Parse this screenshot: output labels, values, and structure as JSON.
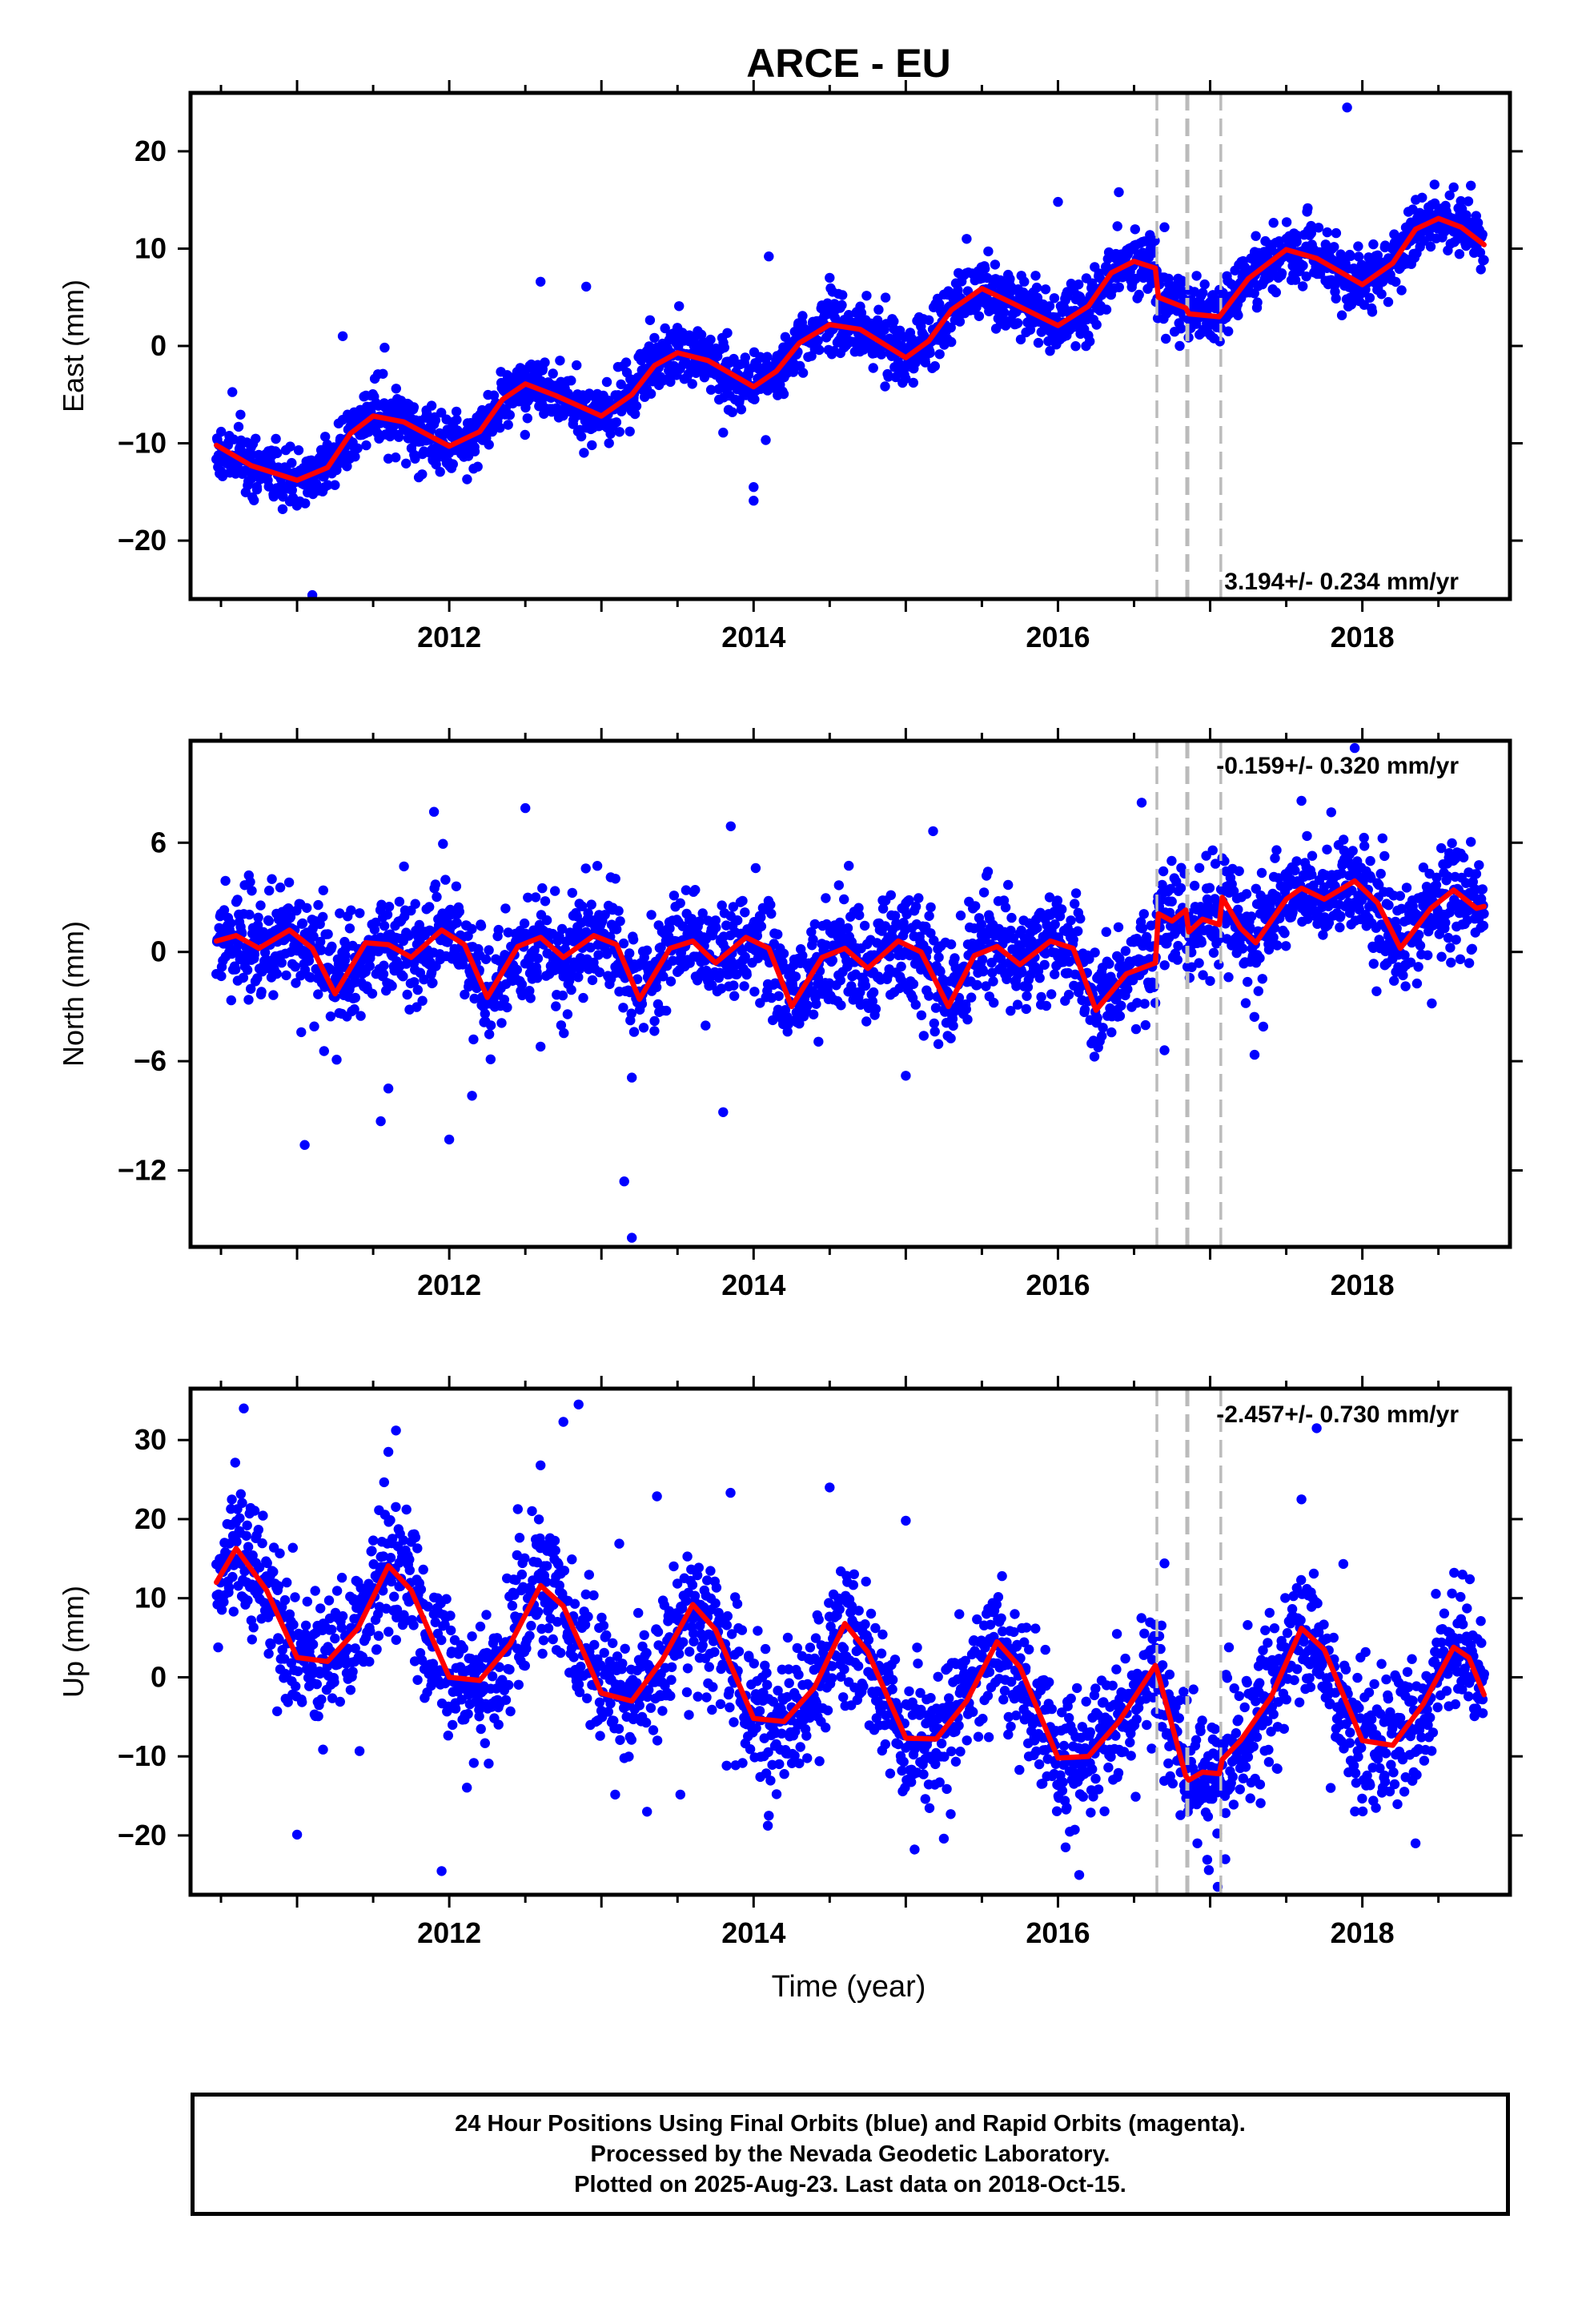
{
  "title": "ARCE - EU",
  "x_axis_label": "Time (year)",
  "footer": {
    "line1": "24 Hour Positions Using Final Orbits (blue) and Rapid Orbits (magenta).",
    "line2": "Processed by the Nevada Geodetic Laboratory.",
    "line3": "Plotted on 2025-Aug-23. Last data on 2018-Oct-15."
  },
  "colors": {
    "final_orbit_points": "#0000ff",
    "rapid_orbit_points": "#ff00ff",
    "model_fit": "#ff0000",
    "offset_lines": "#bbbbbb"
  },
  "chart_data": [
    {
      "type": "scatter",
      "panel": "east",
      "ylabel": "East (mm)",
      "rate_text": "3.194+/- 0.234 mm/yr",
      "xlim": [
        2010.3,
        2018.97
      ],
      "ylim": [
        -26,
        26
      ],
      "xticks": [
        2012,
        2014,
        2016,
        2018
      ],
      "yticks": [
        20,
        10,
        0,
        -10,
        -20
      ],
      "offset_lines_x": [
        2016.65,
        2016.85,
        2017.07
      ],
      "model": {
        "knots": [
          [
            2010.47,
            -10.2
          ],
          [
            2010.7,
            -12.3
          ],
          [
            2011.0,
            -13.8
          ],
          [
            2011.2,
            -12.5
          ],
          [
            2011.35,
            -9.0
          ],
          [
            2011.5,
            -7.2
          ],
          [
            2011.7,
            -7.8
          ],
          [
            2012.0,
            -10.3
          ],
          [
            2012.2,
            -8.8
          ],
          [
            2012.35,
            -5.5
          ],
          [
            2012.5,
            -3.9
          ],
          [
            2012.7,
            -5.1
          ],
          [
            2013.0,
            -7.2
          ],
          [
            2013.2,
            -5.0
          ],
          [
            2013.35,
            -2.0
          ],
          [
            2013.5,
            -0.7
          ],
          [
            2013.7,
            -1.5
          ],
          [
            2014.0,
            -4.2
          ],
          [
            2014.15,
            -2.6
          ],
          [
            2014.3,
            0.3
          ],
          [
            2014.5,
            2.2
          ],
          [
            2014.7,
            1.7
          ],
          [
            2015.0,
            -1.2
          ],
          [
            2015.15,
            0.5
          ],
          [
            2015.3,
            3.7
          ],
          [
            2015.5,
            5.9
          ],
          [
            2015.7,
            4.4
          ],
          [
            2016.0,
            2.1
          ],
          [
            2016.2,
            4.1
          ],
          [
            2016.35,
            7.5
          ],
          [
            2016.5,
            8.7
          ],
          [
            2016.64,
            8.0
          ],
          [
            2016.66,
            5.0
          ],
          [
            2016.84,
            3.9
          ],
          [
            2016.86,
            3.3
          ],
          [
            2017.06,
            3.0
          ],
          [
            2017.08,
            3.4
          ],
          [
            2017.25,
            6.9
          ],
          [
            2017.5,
            9.9
          ],
          [
            2017.7,
            9.0
          ],
          [
            2018.0,
            6.3
          ],
          [
            2018.2,
            8.5
          ],
          [
            2018.35,
            12.0
          ],
          [
            2018.5,
            13.1
          ],
          [
            2018.65,
            12.2
          ],
          [
            2018.8,
            10.4
          ]
        ]
      },
      "outliers": [
        [
          2017.9,
          24.5
        ],
        [
          2011.1,
          -25.6
        ],
        [
          2014.0,
          -14.5
        ],
        [
          2014.0,
          -15.9
        ],
        [
          2011.3,
          1.0
        ],
        [
          2012.6,
          6.6
        ],
        [
          2012.9,
          6.1
        ],
        [
          2014.1,
          9.2
        ],
        [
          2014.5,
          7.0
        ],
        [
          2015.4,
          11.0
        ],
        [
          2016.0,
          14.8
        ],
        [
          2016.4,
          15.8
        ],
        [
          2017.3,
          11.3
        ],
        [
          2016.7,
          12.2
        ],
        [
          2011.8,
          -13.5
        ],
        [
          2013.8,
          -8.9
        ],
        [
          2016.8,
          0.0
        ],
        [
          2018.6,
          16.3
        ]
      ],
      "noise_sd": 1.5,
      "n_points": 2300,
      "seed": 11
    },
    {
      "type": "scatter",
      "panel": "north",
      "ylabel": "North (mm)",
      "rate_text": "-0.159+/- 0.320 mm/yr",
      "xlim": [
        2010.3,
        2018.97
      ],
      "ylim": [
        -16.2,
        11.6
      ],
      "xticks": [
        2012,
        2014,
        2016,
        2018
      ],
      "yticks": [
        6,
        0,
        -6,
        -12
      ],
      "offset_lines_x": [
        2016.65,
        2016.85,
        2017.07
      ],
      "model": {
        "knots": [
          [
            2010.47,
            0.6
          ],
          [
            2010.6,
            0.9
          ],
          [
            2010.75,
            0.2
          ],
          [
            2010.95,
            1.2
          ],
          [
            2011.1,
            0.2
          ],
          [
            2011.25,
            -2.3
          ],
          [
            2011.45,
            0.5
          ],
          [
            2011.6,
            0.4
          ],
          [
            2011.75,
            -0.3
          ],
          [
            2011.95,
            1.2
          ],
          [
            2012.1,
            0.4
          ],
          [
            2012.25,
            -2.5
          ],
          [
            2012.45,
            0.3
          ],
          [
            2012.6,
            0.8
          ],
          [
            2012.75,
            -0.3
          ],
          [
            2012.95,
            0.9
          ],
          [
            2013.1,
            0.4
          ],
          [
            2013.25,
            -2.6
          ],
          [
            2013.45,
            0.2
          ],
          [
            2013.6,
            0.6
          ],
          [
            2013.75,
            -0.6
          ],
          [
            2013.95,
            0.8
          ],
          [
            2014.1,
            0.2
          ],
          [
            2014.25,
            -3.0
          ],
          [
            2014.45,
            -0.3
          ],
          [
            2014.6,
            0.2
          ],
          [
            2014.75,
            -0.9
          ],
          [
            2014.95,
            0.6
          ],
          [
            2015.1,
            0.0
          ],
          [
            2015.28,
            -3.0
          ],
          [
            2015.45,
            -0.2
          ],
          [
            2015.6,
            0.3
          ],
          [
            2015.75,
            -0.7
          ],
          [
            2015.95,
            0.6
          ],
          [
            2016.1,
            0.2
          ],
          [
            2016.25,
            -3.2
          ],
          [
            2016.45,
            -1.2
          ],
          [
            2016.64,
            -0.6
          ],
          [
            2016.66,
            2.1
          ],
          [
            2016.75,
            1.7
          ],
          [
            2016.84,
            2.3
          ],
          [
            2016.86,
            1.1
          ],
          [
            2016.95,
            1.8
          ],
          [
            2017.06,
            1.5
          ],
          [
            2017.08,
            3.0
          ],
          [
            2017.2,
            1.3
          ],
          [
            2017.3,
            0.5
          ],
          [
            2017.5,
            2.9
          ],
          [
            2017.6,
            3.5
          ],
          [
            2017.75,
            2.9
          ],
          [
            2017.95,
            3.9
          ],
          [
            2018.1,
            2.7
          ],
          [
            2018.25,
            0.2
          ],
          [
            2018.45,
            2.4
          ],
          [
            2018.6,
            3.4
          ],
          [
            2018.75,
            2.4
          ],
          [
            2018.8,
            2.5
          ]
        ]
      },
      "outliers": [
        [
          2013.15,
          -12.6
        ],
        [
          2013.2,
          -15.7
        ],
        [
          2011.05,
          -10.6
        ],
        [
          2011.55,
          -9.3
        ],
        [
          2012.0,
          -10.3
        ],
        [
          2011.6,
          -7.5
        ],
        [
          2011.9,
          7.7
        ],
        [
          2012.5,
          7.9
        ],
        [
          2013.2,
          -6.9
        ],
        [
          2013.8,
          -8.8
        ],
        [
          2013.85,
          6.9
        ],
        [
          2015.0,
          -6.8
        ],
        [
          2016.55,
          8.2
        ],
        [
          2017.95,
          11.2
        ],
        [
          2017.6,
          8.3
        ],
        [
          2012.15,
          -7.9
        ],
        [
          2012.6,
          -5.2
        ],
        [
          2016.7,
          -5.4
        ]
      ],
      "noise_sd": 1.4,
      "n_points": 2300,
      "seed": 23
    },
    {
      "type": "scatter",
      "panel": "up",
      "ylabel": "Up (mm)",
      "rate_text": "-2.457+/- 0.730 mm/yr",
      "xlim": [
        2010.3,
        2018.97
      ],
      "ylim": [
        -27.5,
        36.5
      ],
      "xticks": [
        2012,
        2014,
        2016,
        2018
      ],
      "yticks": [
        30,
        20,
        10,
        0,
        -10,
        -20
      ],
      "offset_lines_x": [
        2016.65,
        2016.85,
        2017.07
      ],
      "model": {
        "knots": [
          [
            2010.47,
            12.0
          ],
          [
            2010.6,
            16.3
          ],
          [
            2010.8,
            11.0
          ],
          [
            2011.0,
            2.5
          ],
          [
            2011.2,
            2.0
          ],
          [
            2011.4,
            6.2
          ],
          [
            2011.6,
            14.1
          ],
          [
            2011.75,
            11.0
          ],
          [
            2012.0,
            0.0
          ],
          [
            2012.2,
            -0.4
          ],
          [
            2012.4,
            4.2
          ],
          [
            2012.6,
            11.6
          ],
          [
            2012.75,
            9.0
          ],
          [
            2013.0,
            -2.0
          ],
          [
            2013.2,
            -3.0
          ],
          [
            2013.4,
            2.2
          ],
          [
            2013.6,
            9.2
          ],
          [
            2013.75,
            6.0
          ],
          [
            2014.0,
            -5.2
          ],
          [
            2014.2,
            -5.6
          ],
          [
            2014.4,
            -1.3
          ],
          [
            2014.6,
            6.8
          ],
          [
            2014.75,
            3.2
          ],
          [
            2015.0,
            -7.7
          ],
          [
            2015.2,
            -7.8
          ],
          [
            2015.4,
            -3.0
          ],
          [
            2015.6,
            4.5
          ],
          [
            2015.75,
            1.3
          ],
          [
            2016.0,
            -10.2
          ],
          [
            2016.2,
            -10.0
          ],
          [
            2016.4,
            -5.6
          ],
          [
            2016.64,
            1.5
          ],
          [
            2016.66,
            0.3
          ],
          [
            2016.84,
            -12.5
          ],
          [
            2016.86,
            -13.0
          ],
          [
            2016.95,
            -12.0
          ],
          [
            2017.06,
            -12.2
          ],
          [
            2017.08,
            -10.4
          ],
          [
            2017.2,
            -8.0
          ],
          [
            2017.4,
            -2.5
          ],
          [
            2017.6,
            6.2
          ],
          [
            2017.75,
            3.5
          ],
          [
            2018.0,
            -8.0
          ],
          [
            2018.2,
            -8.6
          ],
          [
            2018.4,
            -3.4
          ],
          [
            2018.6,
            3.8
          ],
          [
            2018.7,
            2.5
          ],
          [
            2018.8,
            -2.2
          ]
        ]
      },
      "outliers": [
        [
          2010.65,
          34.0
        ],
        [
          2012.85,
          34.5
        ],
        [
          2012.75,
          32.3
        ],
        [
          2011.65,
          31.2
        ],
        [
          2011.6,
          28.5
        ],
        [
          2012.6,
          26.8
        ],
        [
          2011.0,
          -19.9
        ],
        [
          2011.95,
          -24.5
        ],
        [
          2017.05,
          -26.5
        ],
        [
          2017.1,
          -23.0
        ],
        [
          2017.7,
          31.5
        ],
        [
          2014.5,
          24.0
        ],
        [
          2015.0,
          19.8
        ],
        [
          2017.6,
          22.5
        ],
        [
          2018.35,
          -21.0
        ],
        [
          2016.05,
          -21.5
        ],
        [
          2015.25,
          -20.4
        ],
        [
          2013.3,
          -17.0
        ],
        [
          2014.1,
          -17.5
        ],
        [
          2016.7,
          14.4
        ]
      ],
      "noise_sd": 4.2,
      "n_points": 2300,
      "seed": 37
    }
  ]
}
